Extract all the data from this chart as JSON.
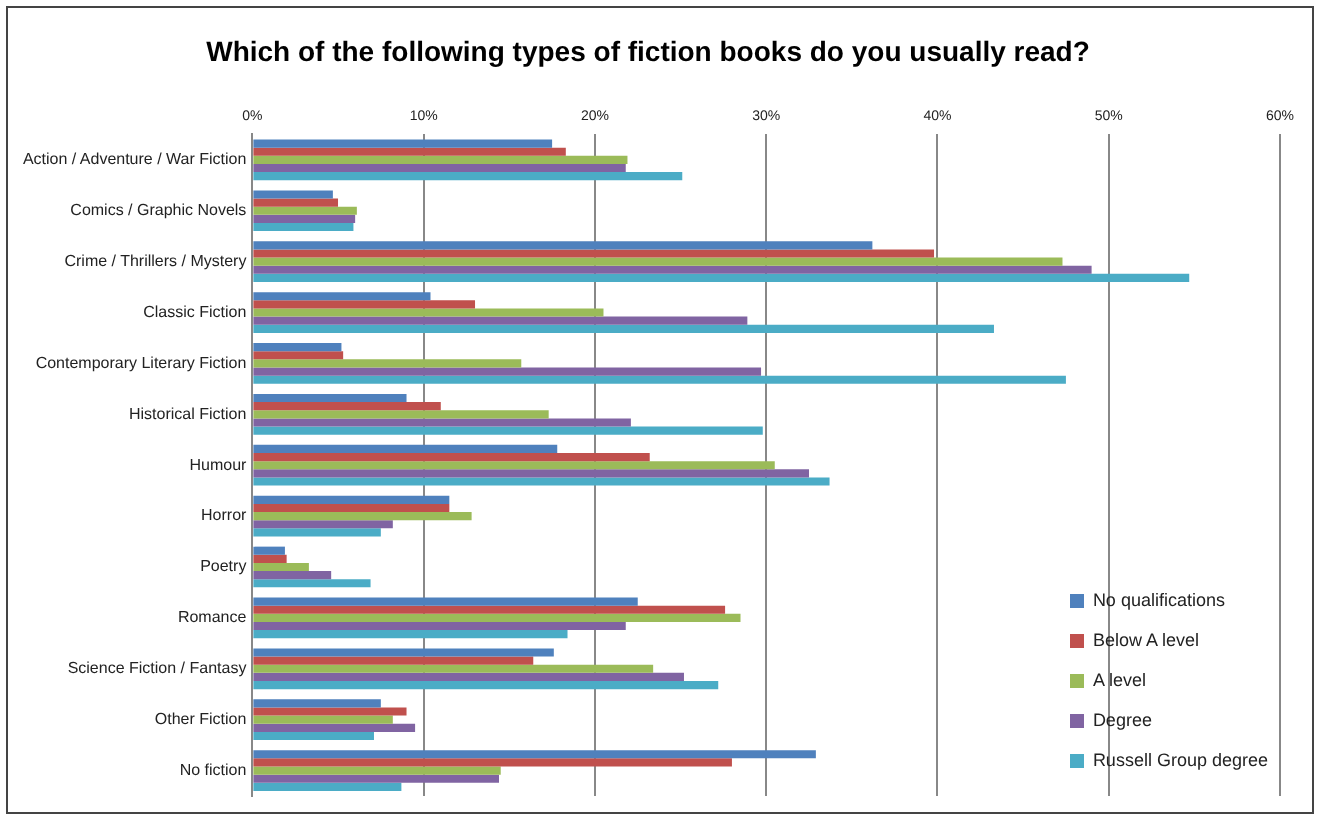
{
  "chart_data": {
    "type": "bar",
    "orientation": "horizontal",
    "title": "Which of the following types of fiction books do you usually read?",
    "categories": [
      "Action / Adventure / War Fiction",
      "Comics / Graphic Novels",
      "Crime / Thrillers / Mystery",
      "Classic Fiction",
      "Contemporary Literary Fiction",
      "Historical Fiction",
      "Humour",
      "Horror",
      "Poetry",
      "Romance",
      "Science Fiction / Fantasy",
      "Other Fiction",
      "No fiction"
    ],
    "series": [
      {
        "name": "No qualifications",
        "color": "#4f81bd",
        "values": [
          17.5,
          4.7,
          36.2,
          10.4,
          5.2,
          9.0,
          17.8,
          11.5,
          1.9,
          22.5,
          17.6,
          7.5,
          32.9
        ]
      },
      {
        "name": "Below A level",
        "color": "#c0504d",
        "values": [
          18.3,
          5.0,
          39.8,
          13.0,
          5.3,
          11.0,
          23.2,
          11.5,
          2.0,
          27.6,
          16.4,
          9.0,
          28.0
        ]
      },
      {
        "name": "A level",
        "color": "#9bbb59",
        "values": [
          21.9,
          6.1,
          47.3,
          20.5,
          15.7,
          17.3,
          30.5,
          12.8,
          3.3,
          28.5,
          23.4,
          8.2,
          14.5
        ]
      },
      {
        "name": "Degree",
        "color": "#8064a2",
        "values": [
          21.8,
          6.0,
          49.0,
          28.9,
          29.7,
          22.1,
          32.5,
          8.2,
          4.6,
          21.8,
          25.2,
          9.5,
          14.4
        ]
      },
      {
        "name": "Russell Group degree",
        "color": "#4bacc6",
        "values": [
          25.1,
          5.9,
          54.7,
          43.3,
          47.5,
          29.8,
          33.7,
          7.5,
          6.9,
          18.4,
          27.2,
          7.1,
          8.7
        ]
      }
    ],
    "xlim": [
      0,
      60
    ],
    "xticks": [
      {
        "value": 0,
        "label": "0%"
      },
      {
        "value": 10,
        "label": "10%"
      },
      {
        "value": 20,
        "label": "20%"
      },
      {
        "value": 30,
        "label": "30%"
      },
      {
        "value": 40,
        "label": "40%"
      },
      {
        "value": 50,
        "label": "50%"
      },
      {
        "value": 60,
        "label": "60%"
      }
    ],
    "grid": "x",
    "legend": "bottom right"
  }
}
